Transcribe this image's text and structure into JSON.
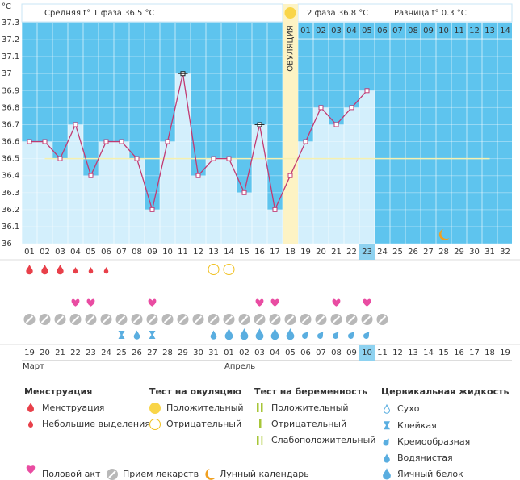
{
  "header": {
    "phase1": "Средняя t° 1 фаза 36.5 °C",
    "phase2": "2 фаза 36.8 °C",
    "diff": "Разница t° 0.3 °C"
  },
  "chart": {
    "unit": "°C",
    "ylim": [
      36,
      37.3
    ],
    "yticks": [
      37.3,
      37.2,
      37.1,
      37,
      36.9,
      36.8,
      36.7,
      36.6,
      36.5,
      36.4,
      36.3,
      36.2,
      36.1,
      36
    ],
    "cycle_days": [
      "01",
      "02",
      "03",
      "04",
      "05",
      "06",
      "07",
      "08",
      "09",
      "10",
      "11",
      "12",
      "13",
      "14",
      "15",
      "16",
      "17",
      "18",
      "19",
      "20",
      "21",
      "22",
      "23",
      "24",
      "25",
      "26",
      "27",
      "28",
      "29",
      "30",
      "31",
      "32"
    ],
    "temps": [
      36.6,
      36.6,
      36.5,
      36.7,
      36.4,
      36.6,
      36.6,
      36.5,
      36.2,
      36.6,
      37.0,
      36.4,
      36.5,
      36.5,
      36.3,
      36.7,
      36.2,
      36.4,
      36.6,
      36.8,
      36.7,
      36.8,
      36.9
    ],
    "coverline": 36.5,
    "coverline_from": "02",
    "coverline_to": "31",
    "high_markers": [
      "11",
      "16"
    ],
    "ovulation_day": "18",
    "ovulation_label": "ОВУЛЯЦИЯ",
    "post_ovulation_days": [
      "01",
      "02",
      "03",
      "04",
      "05",
      "06",
      "07",
      "08",
      "09",
      "10",
      "11",
      "12",
      "13",
      "14"
    ],
    "today": "23",
    "moon_day": "28",
    "menstruation_heavy": [
      "01",
      "02",
      "03"
    ],
    "menstruation_light": [
      "04",
      "05",
      "06"
    ],
    "ovulation_negative": [
      "13",
      "14"
    ],
    "intercourse": [
      "04",
      "05",
      "09",
      "16",
      "17",
      "21",
      "23"
    ],
    "medicine": [
      "01",
      "02",
      "03",
      "04",
      "05",
      "06",
      "07",
      "08",
      "09",
      "10",
      "11",
      "12",
      "13",
      "14",
      "15",
      "16",
      "17",
      "18",
      "19",
      "20",
      "21",
      "22",
      "23",
      "24"
    ],
    "fluid": [
      {
        "day": "07",
        "kind": "sticky"
      },
      {
        "day": "08",
        "kind": "watery"
      },
      {
        "day": "09",
        "kind": "sticky"
      },
      {
        "day": "13",
        "kind": "watery"
      },
      {
        "day": "14",
        "kind": "egg"
      },
      {
        "day": "15",
        "kind": "egg"
      },
      {
        "day": "16",
        "kind": "egg"
      },
      {
        "day": "17",
        "kind": "egg"
      },
      {
        "day": "18",
        "kind": "egg"
      },
      {
        "day": "19",
        "kind": "creamy"
      },
      {
        "day": "20",
        "kind": "creamy"
      },
      {
        "day": "21",
        "kind": "creamy"
      },
      {
        "day": "22",
        "kind": "creamy"
      },
      {
        "day": "23",
        "kind": "creamy"
      }
    ],
    "dates": [
      "19",
      "20",
      "21",
      "22",
      "23",
      "24",
      "25",
      "26",
      "27",
      "28",
      "29",
      "30",
      "31",
      "01",
      "02",
      "03",
      "04",
      "05",
      "06",
      "07",
      "08",
      "09",
      "10",
      "11",
      "12",
      "13",
      "14",
      "15",
      "16",
      "17",
      "18",
      "19"
    ],
    "weekends": [
      2,
      3,
      9,
      10,
      16,
      17,
      23,
      24,
      30,
      31
    ],
    "months": [
      "Март",
      "Апрель"
    ]
  },
  "legend": {
    "menstruation": {
      "title": "Менструация",
      "items": [
        "Менструация",
        "Небольшие выделения"
      ]
    },
    "ovulation_test": {
      "title": "Тест на овуляцию",
      "items": [
        "Положительный",
        "Отрицательный"
      ]
    },
    "pregnancy_test": {
      "title": "Тест на беременность",
      "items": [
        "Положительный",
        "Отрицательный",
        "Слабоположительный"
      ]
    },
    "fluid": {
      "title": "Цервикальная жидкость",
      "items": [
        "Сухо",
        "Клейкая",
        "Кремообразная",
        "Водянистая",
        "Яичный белок"
      ]
    },
    "bottom": [
      "Половой акт",
      "Прием лекарств",
      "Лунный календарь"
    ]
  }
}
